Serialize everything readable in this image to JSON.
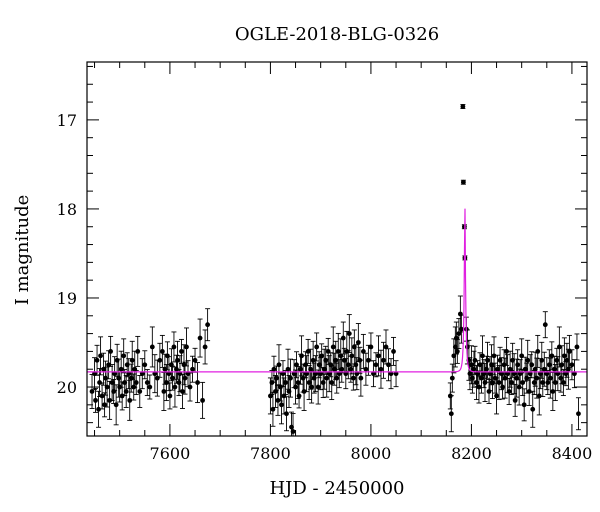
{
  "chart_data": {
    "type": "scatter",
    "title": "OGLE-2018-BLG-0326",
    "xlabel": "HJD - 2450000",
    "ylabel": "I magnitude",
    "xlim": [
      7435,
      8430
    ],
    "ylim": [
      20.55,
      16.35
    ],
    "y_inverted": true,
    "grid": false,
    "x_ticks": [
      "7600",
      "7800",
      "8000",
      "8200",
      "8400"
    ],
    "x_tick_values": [
      7600,
      7800,
      8000,
      8200,
      8400
    ],
    "y_ticks": [
      "17",
      "18",
      "19",
      "20"
    ],
    "y_tick_values": [
      17,
      18,
      19,
      20
    ],
    "model": {
      "color": "#e020e0",
      "baseline": 19.83,
      "peak_mag": 17.93,
      "t0": 8187,
      "tE": 3.4
    },
    "points_color": "#000000",
    "series": [
      {
        "values": [
          [
            7445,
            20.05
          ],
          [
            7450,
            19.85
          ],
          [
            7452,
            20.15
          ],
          [
            7455,
            19.7
          ],
          [
            7458,
            20.25
          ],
          [
            7460,
            19.95
          ],
          [
            7462,
            19.65
          ],
          [
            7465,
            20.1
          ],
          [
            7468,
            19.8
          ],
          [
            7470,
            20.2
          ],
          [
            7472,
            19.9
          ],
          [
            7475,
            20.0
          ],
          [
            7478,
            19.75
          ],
          [
            7480,
            20.15
          ],
          [
            7482,
            19.6
          ],
          [
            7485,
            19.95
          ],
          [
            7488,
            20.05
          ],
          [
            7490,
            19.85
          ],
          [
            7493,
            20.2
          ],
          [
            7495,
            19.7
          ],
          [
            7498,
            19.9
          ],
          [
            7500,
            20.0
          ],
          [
            7503,
            19.8
          ],
          [
            7505,
            20.1
          ],
          [
            7508,
            19.65
          ],
          [
            7510,
            19.95
          ],
          [
            7513,
            20.05
          ],
          [
            7515,
            19.75
          ],
          [
            7518,
            19.85
          ],
          [
            7520,
            20.15
          ],
          [
            7523,
            19.9
          ],
          [
            7525,
            19.7
          ],
          [
            7528,
            20.0
          ],
          [
            7530,
            19.8
          ],
          [
            7533,
            19.95
          ],
          [
            7536,
            19.6
          ],
          [
            7540,
            20.05
          ],
          [
            7545,
            19.85
          ],
          [
            7550,
            19.75
          ],
          [
            7555,
            19.95
          ],
          [
            7560,
            20.0
          ],
          [
            7565,
            19.55
          ],
          [
            7570,
            19.85
          ],
          [
            7575,
            19.9
          ],
          [
            7580,
            19.7
          ],
          [
            7585,
            19.6
          ],
          [
            7588,
            20.05
          ],
          [
            7590,
            19.8
          ],
          [
            7593,
            19.95
          ],
          [
            7595,
            19.65
          ],
          [
            7598,
            19.85
          ],
          [
            7600,
            20.1
          ],
          [
            7603,
            19.75
          ],
          [
            7605,
            19.9
          ],
          [
            7608,
            19.55
          ],
          [
            7610,
            20.0
          ],
          [
            7613,
            19.8
          ],
          [
            7615,
            19.7
          ],
          [
            7618,
            19.95
          ],
          [
            7620,
            19.85
          ],
          [
            7623,
            19.6
          ],
          [
            7625,
            20.05
          ],
          [
            7628,
            19.75
          ],
          [
            7630,
            19.9
          ],
          [
            7633,
            19.55
          ],
          [
            7636,
            19.85
          ],
          [
            7640,
            20.0
          ],
          [
            7645,
            19.8
          ],
          [
            7650,
            19.7
          ],
          [
            7655,
            19.95
          ],
          [
            7660,
            19.45
          ],
          [
            7665,
            20.15
          ],
          [
            7670,
            19.55
          ],
          [
            7675,
            19.3
          ],
          [
            7800,
            20.1
          ],
          [
            7803,
            19.95
          ],
          [
            7805,
            20.25
          ],
          [
            7807,
            19.8
          ],
          [
            7810,
            20.05
          ],
          [
            7812,
            19.9
          ],
          [
            7815,
            20.15
          ],
          [
            7817,
            19.75
          ],
          [
            7820,
            20.0
          ],
          [
            7822,
            20.2
          ],
          [
            7825,
            19.85
          ],
          [
            7827,
            20.1
          ],
          [
            7830,
            19.95
          ],
          [
            7832,
            20.3
          ],
          [
            7835,
            19.8
          ],
          [
            7837,
            20.05
          ],
          [
            7840,
            19.9
          ],
          [
            7842,
            20.45
          ],
          [
            7845,
            20.5
          ],
          [
            7847,
            19.85
          ],
          [
            7850,
            20.0
          ],
          [
            7852,
            19.75
          ],
          [
            7855,
            19.95
          ],
          [
            7857,
            20.1
          ],
          [
            7860,
            19.8
          ],
          [
            7862,
            19.65
          ],
          [
            7865,
            19.9
          ],
          [
            7867,
            20.05
          ],
          [
            7870,
            19.75
          ],
          [
            7872,
            19.85
          ],
          [
            7875,
            19.6
          ],
          [
            7877,
            19.95
          ],
          [
            7880,
            19.8
          ],
          [
            7882,
            20.0
          ],
          [
            7885,
            19.7
          ],
          [
            7887,
            19.9
          ],
          [
            7890,
            19.85
          ],
          [
            7892,
            19.55
          ],
          [
            7895,
            20.0
          ],
          [
            7897,
            19.75
          ],
          [
            7900,
            19.85
          ],
          [
            7902,
            19.65
          ],
          [
            7905,
            19.95
          ],
          [
            7907,
            19.8
          ],
          [
            7910,
            19.7
          ],
          [
            7912,
            19.9
          ],
          [
            7915,
            19.6
          ],
          [
            7917,
            19.85
          ],
          [
            7920,
            19.75
          ],
          [
            7922,
            19.95
          ],
          [
            7925,
            19.55
          ],
          [
            7927,
            19.8
          ],
          [
            7930,
            19.7
          ],
          [
            7932,
            19.9
          ],
          [
            7935,
            19.6
          ],
          [
            7937,
            19.85
          ],
          [
            7940,
            19.65
          ],
          [
            7942,
            19.8
          ],
          [
            7945,
            19.45
          ],
          [
            7947,
            19.7
          ],
          [
            7950,
            19.85
          ],
          [
            7952,
            19.6
          ],
          [
            7955,
            19.75
          ],
          [
            7957,
            19.4
          ],
          [
            7960,
            19.8
          ],
          [
            7962,
            19.65
          ],
          [
            7965,
            19.9
          ],
          [
            7967,
            19.55
          ],
          [
            7970,
            19.75
          ],
          [
            7972,
            19.85
          ],
          [
            7975,
            19.5
          ],
          [
            7978,
            19.7
          ],
          [
            7980,
            19.9
          ],
          [
            7985,
            19.6
          ],
          [
            7990,
            19.8
          ],
          [
            7995,
            19.7
          ],
          [
            8000,
            19.55
          ],
          [
            8005,
            19.85
          ],
          [
            8010,
            19.75
          ],
          [
            8015,
            19.65
          ],
          [
            8020,
            19.8
          ],
          [
            8025,
            19.7
          ],
          [
            8030,
            19.55
          ],
          [
            8035,
            19.75
          ],
          [
            8040,
            19.85
          ],
          [
            8045,
            19.6
          ],
          [
            8050,
            19.85
          ],
          [
            8158,
            20.1
          ],
          [
            8160,
            20.3
          ],
          [
            8162,
            19.9
          ],
          [
            8165,
            19.65
          ],
          [
            8168,
            19.55
          ],
          [
            8170,
            19.45
          ],
          [
            8172,
            19.6
          ],
          [
            8175,
            19.4
          ],
          [
            8178,
            19.18
          ],
          [
            8180,
            19.35
          ],
          [
            8183,
            16.85
          ],
          [
            8184,
            17.7
          ],
          [
            8186,
            18.2
          ],
          [
            8187,
            18.55
          ],
          [
            8190,
            19.35
          ],
          [
            8192,
            19.55
          ],
          [
            8195,
            19.7
          ],
          [
            8197,
            19.85
          ],
          [
            8200,
            19.75
          ],
          [
            8202,
            19.9
          ],
          [
            8205,
            19.8
          ],
          [
            8207,
            19.7
          ],
          [
            8210,
            19.95
          ],
          [
            8212,
            19.85
          ],
          [
            8215,
            20.0
          ],
          [
            8217,
            19.75
          ],
          [
            8220,
            19.9
          ],
          [
            8222,
            19.65
          ],
          [
            8225,
            19.85
          ],
          [
            8227,
            19.95
          ],
          [
            8230,
            19.8
          ],
          [
            8232,
            19.7
          ],
          [
            8235,
            20.05
          ],
          [
            8237,
            19.85
          ],
          [
            8240,
            19.75
          ],
          [
            8242,
            19.95
          ],
          [
            8245,
            19.65
          ],
          [
            8247,
            19.9
          ],
          [
            8250,
            20.1
          ],
          [
            8252,
            19.8
          ],
          [
            8255,
            19.95
          ],
          [
            8257,
            19.7
          ],
          [
            8260,
            19.85
          ],
          [
            8262,
            20.0
          ],
          [
            8265,
            19.75
          ],
          [
            8267,
            19.9
          ],
          [
            8270,
            19.6
          ],
          [
            8272,
            19.85
          ],
          [
            8275,
            20.05
          ],
          [
            8277,
            19.8
          ],
          [
            8280,
            19.95
          ],
          [
            8282,
            19.7
          ],
          [
            8285,
            19.85
          ],
          [
            8287,
            20.15
          ],
          [
            8290,
            19.9
          ],
          [
            8292,
            19.75
          ],
          [
            8295,
            20.0
          ],
          [
            8297,
            19.85
          ],
          [
            8300,
            19.65
          ],
          [
            8302,
            19.95
          ],
          [
            8305,
            20.2
          ],
          [
            8307,
            19.8
          ],
          [
            8310,
            19.9
          ],
          [
            8312,
            19.7
          ],
          [
            8315,
            20.05
          ],
          [
            8317,
            19.85
          ],
          [
            8320,
            19.75
          ],
          [
            8322,
            20.25
          ],
          [
            8325,
            19.95
          ],
          [
            8327,
            19.8
          ],
          [
            8330,
            19.9
          ],
          [
            8332,
            19.6
          ],
          [
            8335,
            20.1
          ],
          [
            8337,
            19.85
          ],
          [
            8340,
            19.7
          ],
          [
            8342,
            19.95
          ],
          [
            8345,
            19.8
          ],
          [
            8347,
            19.3
          ],
          [
            8350,
            19.85
          ],
          [
            8352,
            19.95
          ],
          [
            8355,
            19.75
          ],
          [
            8357,
            19.9
          ],
          [
            8360,
            19.65
          ],
          [
            8362,
            20.05
          ],
          [
            8365,
            19.8
          ],
          [
            8367,
            19.95
          ],
          [
            8370,
            19.7
          ],
          [
            8372,
            19.85
          ],
          [
            8375,
            19.55
          ],
          [
            8378,
            19.9
          ],
          [
            8380,
            19.75
          ],
          [
            8383,
            19.95
          ],
          [
            8385,
            19.65
          ],
          [
            8388,
            19.85
          ],
          [
            8390,
            19.7
          ],
          [
            8393,
            19.8
          ],
          [
            8395,
            19.6
          ],
          [
            8400,
            19.75
          ],
          [
            8405,
            19.85
          ],
          [
            8410,
            19.55
          ],
          [
            8413,
            20.3
          ]
        ]
      }
    ]
  }
}
